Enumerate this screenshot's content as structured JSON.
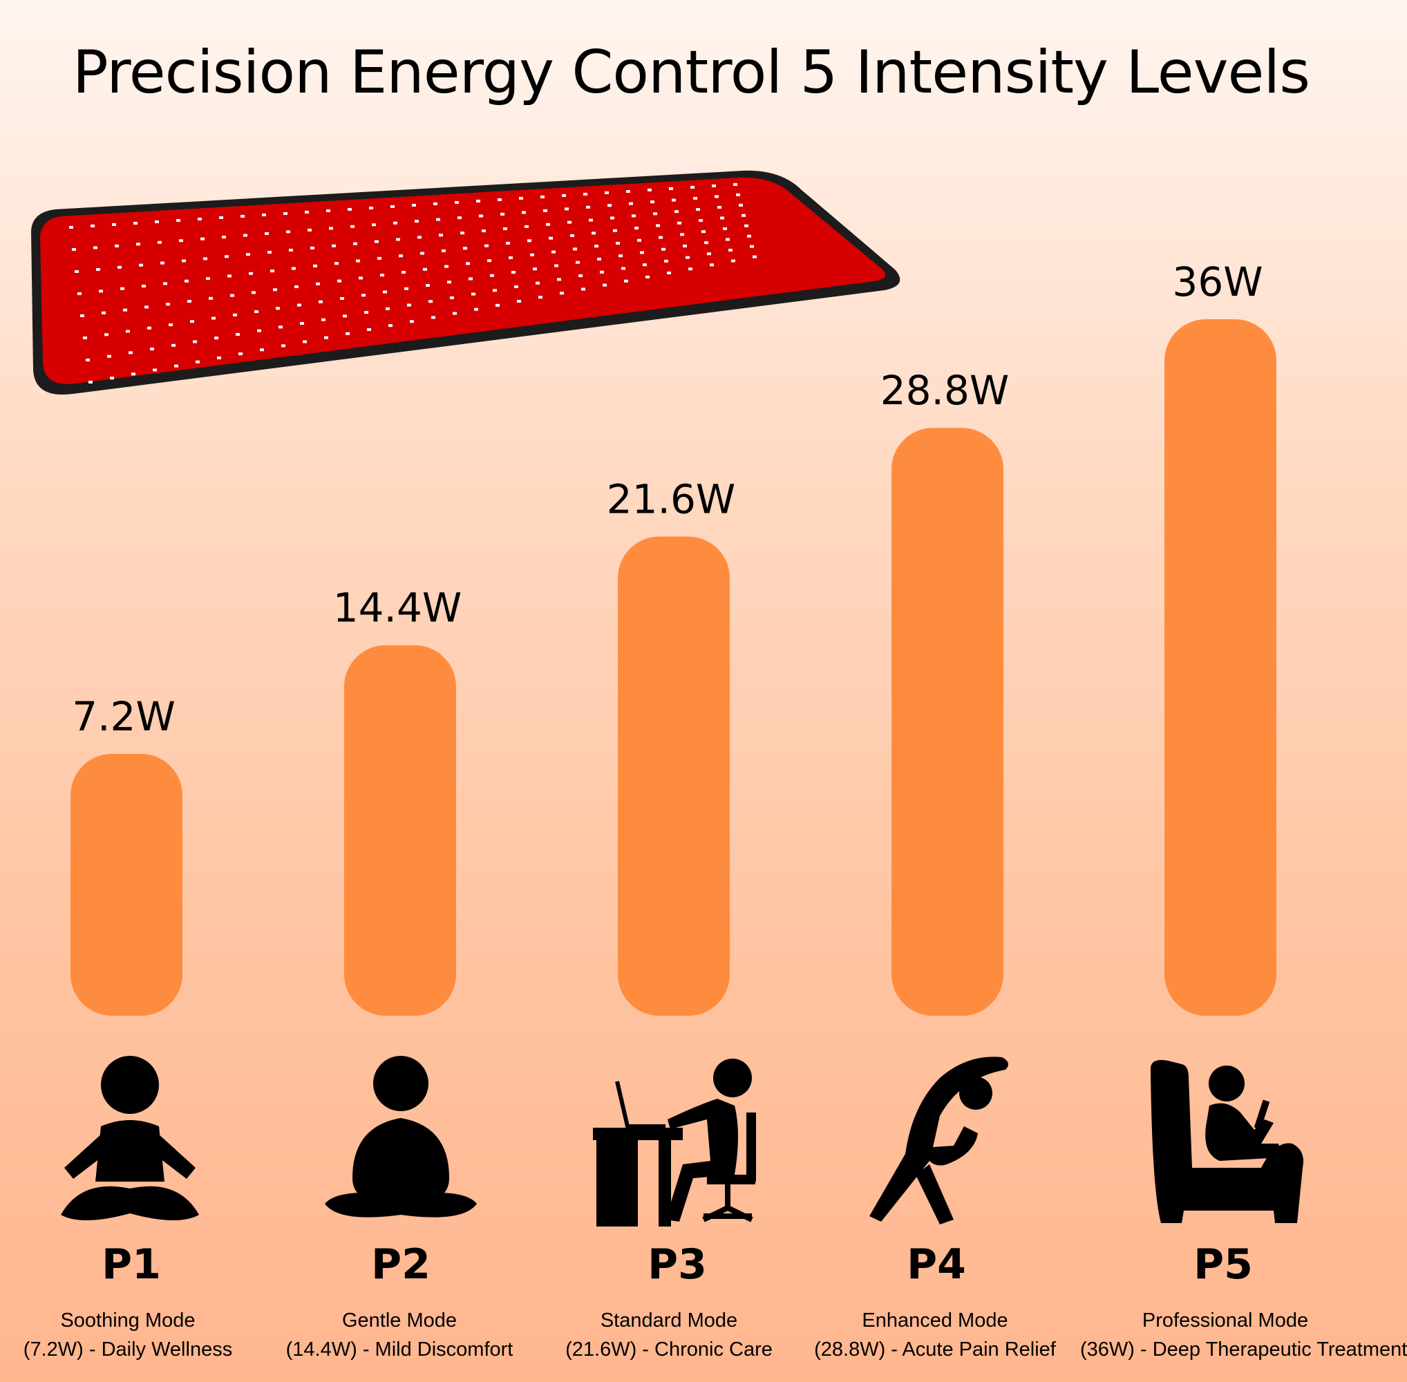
{
  "title": "Precision Energy Control 5 Intensity Levels",
  "colors": {
    "bar": "#fe8c3f",
    "mat": "#d60000",
    "mat_border": "#1c1c1c",
    "led": "#ffffff"
  },
  "chart_data": {
    "type": "bar",
    "categories": [
      "P1",
      "P2",
      "P3",
      "P4",
      "P5"
    ],
    "values": [
      7.2,
      14.4,
      21.6,
      28.8,
      36
    ],
    "unit": "W",
    "data_labels": [
      "7.2W",
      "14.4W",
      "21.6W",
      "28.8W",
      "36W"
    ],
    "ylim": [
      0,
      36
    ],
    "grid": false,
    "axes_visible": false
  },
  "levels": [
    {
      "code": "P1",
      "mode": "Soothing Mode",
      "detail": "(7.2W) - Daily Wellness",
      "icon": "meditation-icon"
    },
    {
      "code": "P2",
      "mode": "Gentle Mode",
      "detail": "(14.4W) - Mild Discomfort",
      "icon": "seated-person-icon"
    },
    {
      "code": "P3",
      "mode": "Standard Mode",
      "detail": "(21.6W) - Chronic Care",
      "icon": "desk-worker-icon"
    },
    {
      "code": "P4",
      "mode": "Enhanced Mode",
      "detail": "(28.8W) - Acute Pain Relief",
      "icon": "stretching-icon"
    },
    {
      "code": "P5",
      "mode": "Professional Mode",
      "detail": "(36W) - Deep Therapeutic Treatment",
      "icon": "armchair-icon"
    }
  ]
}
